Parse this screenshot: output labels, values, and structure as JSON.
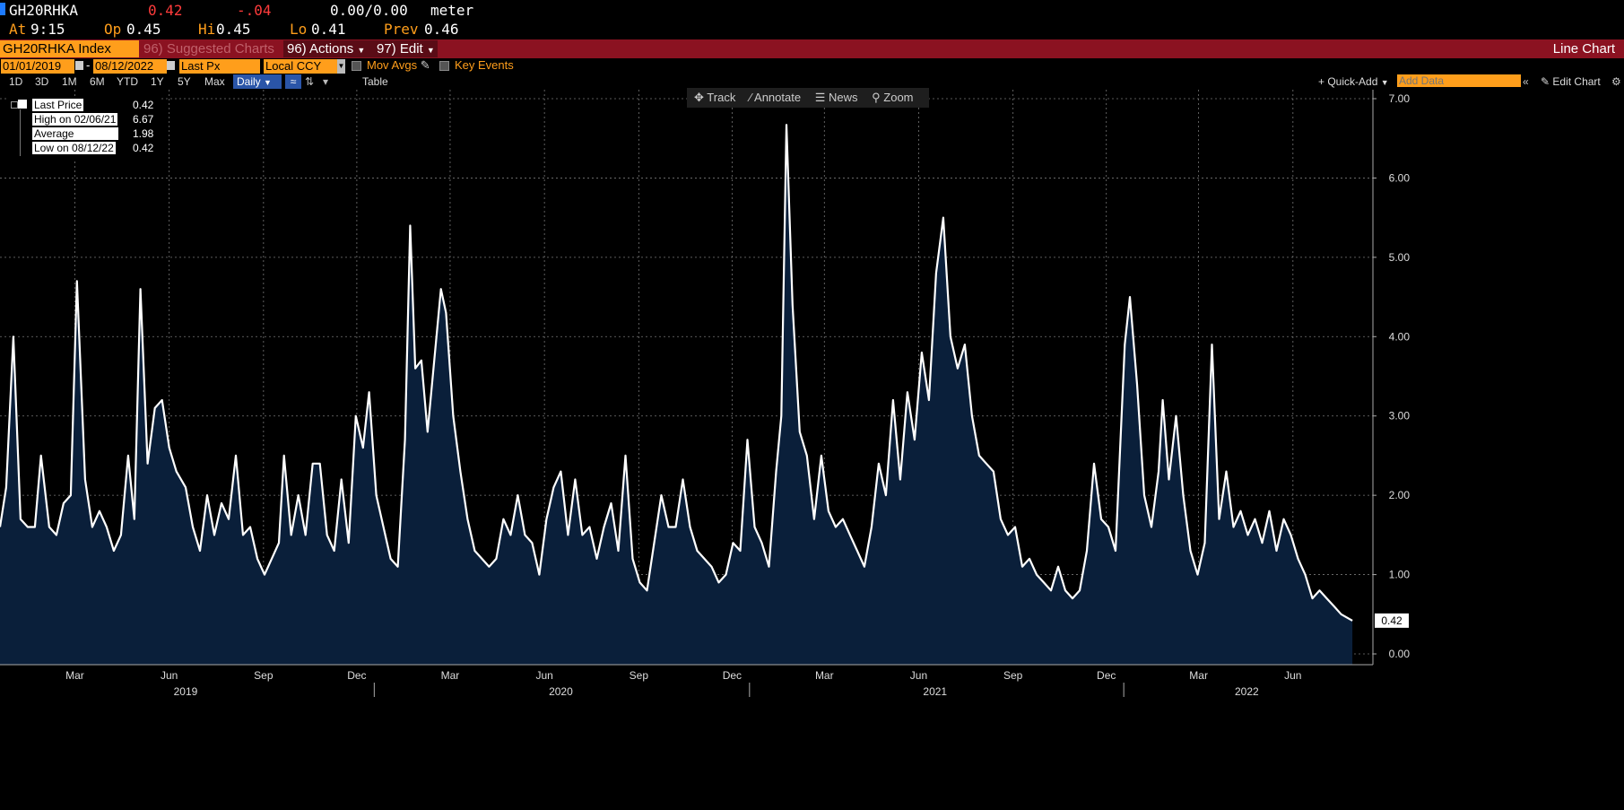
{
  "header": {
    "ticker": "GH20RHKA",
    "last": "0.42",
    "change": "-.04",
    "bidask": "0.00/0.00",
    "unit": "meter",
    "at_label": "At",
    "at_time": "9:15",
    "op_label": "Op",
    "op_val": "0.45",
    "hi_label": "Hi",
    "hi_val": "0.45",
    "lo_label": "Lo",
    "lo_val": "0.41",
    "prev_label": "Prev",
    "prev_val": "0.46"
  },
  "toolbar": {
    "security": "GH20RHKA Index",
    "suggested": "96) Suggested Charts",
    "actions": "96) Actions",
    "edit": "97) Edit",
    "chart_type": "Line Chart"
  },
  "controls": {
    "start_date": "01/01/2019",
    "end_date": "08/12/2022",
    "field": "Last Px",
    "currency": "Local CCY",
    "mov_avgs": "Mov Avgs",
    "key_events": "Key Events",
    "ranges": [
      "1D",
      "3D",
      "1M",
      "6M",
      "YTD",
      "1Y",
      "5Y",
      "Max"
    ],
    "frequency": "Daily",
    "table": "Table",
    "quick_add": "+ Quick-Add",
    "add_data_placeholder": "Add Data",
    "edit_chart": "Edit Chart"
  },
  "tools": {
    "track": "Track",
    "annotate": "Annotate",
    "news": "News",
    "zoom": "Zoom"
  },
  "legend": {
    "last_label": "Last Price",
    "last_val": "0.42",
    "high_label": "High on 02/06/21",
    "high_val": "6.67",
    "avg_label": "Average",
    "avg_val": "1.98",
    "low_label": "Low on 08/12/22",
    "low_val": "0.42"
  },
  "colors": {
    "background": "#000000",
    "line": "#ffffff",
    "fill": "#0a1f3a",
    "toolbar": "#8b1221",
    "accent": "#ff9e1b",
    "change": "#ff3b3b"
  },
  "chart_data": {
    "type": "area",
    "series": [
      {
        "values": [
          {
            "x": "2019-01-01",
            "y": 1.6
          },
          {
            "x": "2019-01-07",
            "y": 2.1
          },
          {
            "x": "2019-01-14",
            "y": 4.0
          },
          {
            "x": "2019-01-21",
            "y": 1.7
          },
          {
            "x": "2019-01-28",
            "y": 1.6
          },
          {
            "x": "2019-02-04",
            "y": 1.6
          },
          {
            "x": "2019-02-10",
            "y": 2.5
          },
          {
            "x": "2019-02-18",
            "y": 1.6
          },
          {
            "x": "2019-02-25",
            "y": 1.5
          },
          {
            "x": "2019-03-04",
            "y": 1.9
          },
          {
            "x": "2019-03-11",
            "y": 2.0
          },
          {
            "x": "2019-03-17",
            "y": 4.7
          },
          {
            "x": "2019-03-25",
            "y": 2.2
          },
          {
            "x": "2019-04-01",
            "y": 1.6
          },
          {
            "x": "2019-04-08",
            "y": 1.8
          },
          {
            "x": "2019-04-15",
            "y": 1.6
          },
          {
            "x": "2019-04-22",
            "y": 1.3
          },
          {
            "x": "2019-04-29",
            "y": 1.5
          },
          {
            "x": "2019-05-06",
            "y": 2.5
          },
          {
            "x": "2019-05-12",
            "y": 1.7
          },
          {
            "x": "2019-05-18",
            "y": 4.6
          },
          {
            "x": "2019-05-25",
            "y": 2.4
          },
          {
            "x": "2019-06-01",
            "y": 3.1
          },
          {
            "x": "2019-06-08",
            "y": 3.2
          },
          {
            "x": "2019-06-15",
            "y": 2.6
          },
          {
            "x": "2019-06-22",
            "y": 2.3
          },
          {
            "x": "2019-07-01",
            "y": 2.1
          },
          {
            "x": "2019-07-08",
            "y": 1.6
          },
          {
            "x": "2019-07-15",
            "y": 1.3
          },
          {
            "x": "2019-07-22",
            "y": 2.0
          },
          {
            "x": "2019-07-29",
            "y": 1.5
          },
          {
            "x": "2019-08-05",
            "y": 1.9
          },
          {
            "x": "2019-08-12",
            "y": 1.7
          },
          {
            "x": "2019-08-19",
            "y": 2.5
          },
          {
            "x": "2019-08-26",
            "y": 1.5
          },
          {
            "x": "2019-09-02",
            "y": 1.6
          },
          {
            "x": "2019-09-09",
            "y": 1.2
          },
          {
            "x": "2019-09-16",
            "y": 1.0
          },
          {
            "x": "2019-09-23",
            "y": 1.2
          },
          {
            "x": "2019-09-30",
            "y": 1.4
          },
          {
            "x": "2019-10-05",
            "y": 2.5
          },
          {
            "x": "2019-10-12",
            "y": 1.5
          },
          {
            "x": "2019-10-19",
            "y": 2.0
          },
          {
            "x": "2019-10-26",
            "y": 1.5
          },
          {
            "x": "2019-11-02",
            "y": 2.4
          },
          {
            "x": "2019-11-09",
            "y": 2.4
          },
          {
            "x": "2019-11-16",
            "y": 1.5
          },
          {
            "x": "2019-11-23",
            "y": 1.3
          },
          {
            "x": "2019-11-30",
            "y": 2.2
          },
          {
            "x": "2019-12-07",
            "y": 1.4
          },
          {
            "x": "2019-12-14",
            "y": 3.0
          },
          {
            "x": "2019-12-21",
            "y": 2.6
          },
          {
            "x": "2019-12-27",
            "y": 3.3
          },
          {
            "x": "2020-01-03",
            "y": 2.0
          },
          {
            "x": "2020-01-10",
            "y": 1.6
          },
          {
            "x": "2020-01-17",
            "y": 1.2
          },
          {
            "x": "2020-01-24",
            "y": 1.1
          },
          {
            "x": "2020-01-31",
            "y": 2.7
          },
          {
            "x": "2020-02-05",
            "y": 5.4
          },
          {
            "x": "2020-02-10",
            "y": 3.6
          },
          {
            "x": "2020-02-16",
            "y": 3.7
          },
          {
            "x": "2020-02-22",
            "y": 2.8
          },
          {
            "x": "2020-03-01",
            "y": 3.9
          },
          {
            "x": "2020-03-06",
            "y": 4.6
          },
          {
            "x": "2020-03-11",
            "y": 4.3
          },
          {
            "x": "2020-03-18",
            "y": 3.0
          },
          {
            "x": "2020-03-25",
            "y": 2.3
          },
          {
            "x": "2020-04-01",
            "y": 1.7
          },
          {
            "x": "2020-04-08",
            "y": 1.3
          },
          {
            "x": "2020-04-15",
            "y": 1.2
          },
          {
            "x": "2020-04-22",
            "y": 1.1
          },
          {
            "x": "2020-04-29",
            "y": 1.2
          },
          {
            "x": "2020-05-06",
            "y": 1.7
          },
          {
            "x": "2020-05-13",
            "y": 1.5
          },
          {
            "x": "2020-05-20",
            "y": 2.0
          },
          {
            "x": "2020-05-27",
            "y": 1.5
          },
          {
            "x": "2020-06-03",
            "y": 1.4
          },
          {
            "x": "2020-06-10",
            "y": 1.0
          },
          {
            "x": "2020-06-17",
            "y": 1.7
          },
          {
            "x": "2020-06-24",
            "y": 2.1
          },
          {
            "x": "2020-07-01",
            "y": 2.3
          },
          {
            "x": "2020-07-08",
            "y": 1.5
          },
          {
            "x": "2020-07-15",
            "y": 2.2
          },
          {
            "x": "2020-07-22",
            "y": 1.5
          },
          {
            "x": "2020-07-29",
            "y": 1.6
          },
          {
            "x": "2020-08-05",
            "y": 1.2
          },
          {
            "x": "2020-08-12",
            "y": 1.6
          },
          {
            "x": "2020-08-19",
            "y": 1.9
          },
          {
            "x": "2020-08-26",
            "y": 1.3
          },
          {
            "x": "2020-09-02",
            "y": 2.5
          },
          {
            "x": "2020-09-09",
            "y": 1.2
          },
          {
            "x": "2020-09-16",
            "y": 0.9
          },
          {
            "x": "2020-09-23",
            "y": 0.8
          },
          {
            "x": "2020-09-30",
            "y": 1.4
          },
          {
            "x": "2020-10-07",
            "y": 2.0
          },
          {
            "x": "2020-10-14",
            "y": 1.6
          },
          {
            "x": "2020-10-21",
            "y": 1.6
          },
          {
            "x": "2020-10-28",
            "y": 2.2
          },
          {
            "x": "2020-11-04",
            "y": 1.6
          },
          {
            "x": "2020-11-11",
            "y": 1.3
          },
          {
            "x": "2020-11-18",
            "y": 1.2
          },
          {
            "x": "2020-11-25",
            "y": 1.1
          },
          {
            "x": "2020-12-02",
            "y": 0.9
          },
          {
            "x": "2020-12-09",
            "y": 1.0
          },
          {
            "x": "2020-12-16",
            "y": 1.4
          },
          {
            "x": "2020-12-23",
            "y": 1.3
          },
          {
            "x": "2020-12-30",
            "y": 2.7
          },
          {
            "x": "2021-01-06",
            "y": 1.6
          },
          {
            "x": "2021-01-13",
            "y": 1.4
          },
          {
            "x": "2021-01-20",
            "y": 1.1
          },
          {
            "x": "2021-01-27",
            "y": 2.3
          },
          {
            "x": "2021-02-01",
            "y": 3.0
          },
          {
            "x": "2021-02-06",
            "y": 6.67
          },
          {
            "x": "2021-02-12",
            "y": 4.4
          },
          {
            "x": "2021-02-19",
            "y": 2.8
          },
          {
            "x": "2021-02-26",
            "y": 2.5
          },
          {
            "x": "2021-03-05",
            "y": 1.7
          },
          {
            "x": "2021-03-12",
            "y": 2.5
          },
          {
            "x": "2021-03-19",
            "y": 1.8
          },
          {
            "x": "2021-03-26",
            "y": 1.6
          },
          {
            "x": "2021-04-02",
            "y": 1.7
          },
          {
            "x": "2021-04-09",
            "y": 1.5
          },
          {
            "x": "2021-04-16",
            "y": 1.3
          },
          {
            "x": "2021-04-23",
            "y": 1.1
          },
          {
            "x": "2021-04-30",
            "y": 1.6
          },
          {
            "x": "2021-05-07",
            "y": 2.4
          },
          {
            "x": "2021-05-14",
            "y": 2.0
          },
          {
            "x": "2021-05-21",
            "y": 3.2
          },
          {
            "x": "2021-05-28",
            "y": 2.2
          },
          {
            "x": "2021-06-04",
            "y": 3.3
          },
          {
            "x": "2021-06-11",
            "y": 2.7
          },
          {
            "x": "2021-06-18",
            "y": 3.8
          },
          {
            "x": "2021-06-25",
            "y": 3.2
          },
          {
            "x": "2021-07-02",
            "y": 4.8
          },
          {
            "x": "2021-07-09",
            "y": 5.5
          },
          {
            "x": "2021-07-16",
            "y": 4.0
          },
          {
            "x": "2021-07-23",
            "y": 3.6
          },
          {
            "x": "2021-07-30",
            "y": 3.9
          },
          {
            "x": "2021-08-06",
            "y": 3.0
          },
          {
            "x": "2021-08-13",
            "y": 2.5
          },
          {
            "x": "2021-08-20",
            "y": 2.4
          },
          {
            "x": "2021-08-27",
            "y": 2.3
          },
          {
            "x": "2021-09-03",
            "y": 1.7
          },
          {
            "x": "2021-09-10",
            "y": 1.5
          },
          {
            "x": "2021-09-17",
            "y": 1.6
          },
          {
            "x": "2021-09-24",
            "y": 1.1
          },
          {
            "x": "2021-10-01",
            "y": 1.2
          },
          {
            "x": "2021-10-08",
            "y": 1.0
          },
          {
            "x": "2021-10-15",
            "y": 0.9
          },
          {
            "x": "2021-10-22",
            "y": 0.8
          },
          {
            "x": "2021-10-29",
            "y": 1.1
          },
          {
            "x": "2021-11-05",
            "y": 0.8
          },
          {
            "x": "2021-11-12",
            "y": 0.7
          },
          {
            "x": "2021-11-19",
            "y": 0.8
          },
          {
            "x": "2021-11-26",
            "y": 1.3
          },
          {
            "x": "2021-12-03",
            "y": 2.4
          },
          {
            "x": "2021-12-10",
            "y": 1.7
          },
          {
            "x": "2021-12-17",
            "y": 1.6
          },
          {
            "x": "2021-12-24",
            "y": 1.3
          },
          {
            "x": "2022-01-02",
            "y": 3.9
          },
          {
            "x": "2022-01-07",
            "y": 4.5
          },
          {
            "x": "2022-01-14",
            "y": 3.4
          },
          {
            "x": "2022-01-21",
            "y": 2.0
          },
          {
            "x": "2022-01-28",
            "y": 1.6
          },
          {
            "x": "2022-02-04",
            "y": 2.3
          },
          {
            "x": "2022-02-08",
            "y": 3.2
          },
          {
            "x": "2022-02-14",
            "y": 2.2
          },
          {
            "x": "2022-02-21",
            "y": 3.0
          },
          {
            "x": "2022-02-28",
            "y": 2.0
          },
          {
            "x": "2022-03-07",
            "y": 1.3
          },
          {
            "x": "2022-03-14",
            "y": 1.0
          },
          {
            "x": "2022-03-21",
            "y": 1.4
          },
          {
            "x": "2022-03-28",
            "y": 3.9
          },
          {
            "x": "2022-04-04",
            "y": 1.7
          },
          {
            "x": "2022-04-11",
            "y": 2.3
          },
          {
            "x": "2022-04-18",
            "y": 1.6
          },
          {
            "x": "2022-04-25",
            "y": 1.8
          },
          {
            "x": "2022-05-02",
            "y": 1.5
          },
          {
            "x": "2022-05-09",
            "y": 1.7
          },
          {
            "x": "2022-05-16",
            "y": 1.4
          },
          {
            "x": "2022-05-23",
            "y": 1.8
          },
          {
            "x": "2022-05-30",
            "y": 1.3
          },
          {
            "x": "2022-06-06",
            "y": 1.7
          },
          {
            "x": "2022-06-13",
            "y": 1.5
          },
          {
            "x": "2022-06-20",
            "y": 1.2
          },
          {
            "x": "2022-06-27",
            "y": 1.0
          },
          {
            "x": "2022-07-04",
            "y": 0.7
          },
          {
            "x": "2022-07-11",
            "y": 0.8
          },
          {
            "x": "2022-07-18",
            "y": 0.7
          },
          {
            "x": "2022-07-25",
            "y": 0.6
          },
          {
            "x": "2022-08-01",
            "y": 0.5
          },
          {
            "x": "2022-08-12",
            "y": 0.42
          }
        ]
      }
    ],
    "x_ticks": [
      "Mar",
      "Jun",
      "Sep",
      "Dec",
      "Mar",
      "Jun",
      "Sep",
      "Dec",
      "Mar",
      "Jun",
      "Sep",
      "Dec",
      "Mar",
      "Jun"
    ],
    "years": [
      "2019",
      "2020",
      "2021",
      "2022"
    ],
    "y_ticks": [
      "0.00",
      "1.00",
      "2.00",
      "3.00",
      "4.00",
      "5.00",
      "6.00",
      "7.00"
    ],
    "ylim": [
      0,
      7
    ],
    "xlim": [
      "2019-01-01",
      "2022-09-01"
    ],
    "grid": true,
    "last_value_label": "0.42"
  }
}
